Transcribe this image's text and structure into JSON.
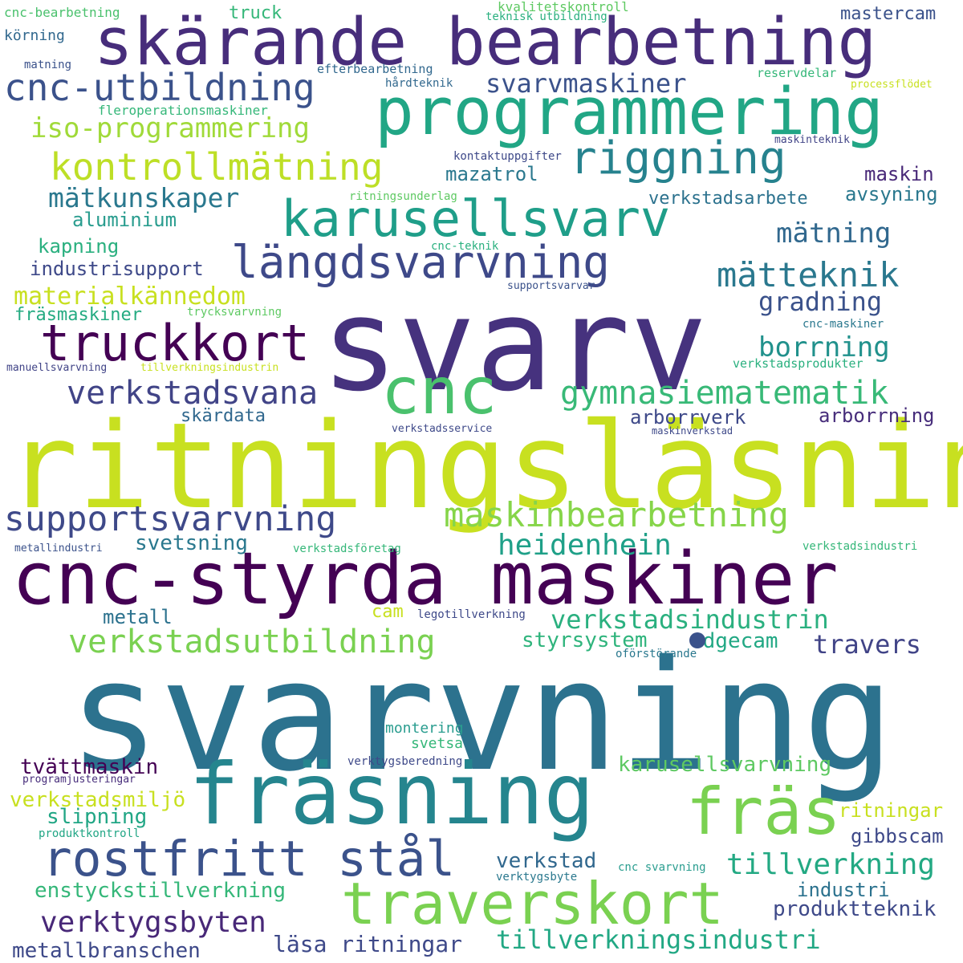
{
  "words": [
    {
      "text": "svarvning",
      "color": "#2c728e"
    },
    {
      "text": "ritningsläsning",
      "color": "#c8e020"
    },
    {
      "text": "svarv",
      "color": "#46327e"
    },
    {
      "text": "cnc-styrda maskiner",
      "color": "#440154"
    },
    {
      "text": "skärande bearbetning",
      "color": "#472d7b"
    },
    {
      "text": "programmering",
      "color": "#21a685"
    },
    {
      "text": "fräsning",
      "color": "#25858e"
    },
    {
      "text": "traverskort",
      "color": "#7ad151"
    },
    {
      "text": "cnc",
      "color": "#4ac16d"
    },
    {
      "text": "karusellsvarv",
      "color": "#1f9e89"
    },
    {
      "text": "längdsvarvning",
      "color": "#3e4989"
    },
    {
      "text": "truckkort",
      "color": "#440154"
    },
    {
      "text": "rostfritt stål",
      "color": "#3b528b"
    },
    {
      "text": "fräs",
      "color": "#7ad151"
    },
    {
      "text": "riggning",
      "color": "#26828e"
    },
    {
      "text": "cnc-utbildning",
      "color": "#3b528b"
    },
    {
      "text": "kontrollmätning",
      "color": "#bddf26"
    },
    {
      "text": "maskinbearbetning",
      "color": "#86d549"
    },
    {
      "text": "supportsvarvning",
      "color": "#3e4989"
    },
    {
      "text": "verkstadsvana",
      "color": "#414487"
    },
    {
      "text": "gymnasiematematik",
      "color": "#38b977"
    },
    {
      "text": "verkstadsutbildning",
      "color": "#7ad151"
    },
    {
      "text": "iso-programmering",
      "color": "#a0da39"
    },
    {
      "text": "mätteknik",
      "color": "#2a788e"
    },
    {
      "text": "verkstadsindustrin",
      "color": "#2ab07f"
    },
    {
      "text": "svarvmaskiner",
      "color": "#3b528b"
    },
    {
      "text": "tillverkning",
      "color": "#23a983"
    },
    {
      "text": "tillverkningsindustri",
      "color": "#22a884"
    },
    {
      "text": "verktygsbyten",
      "color": "#482878"
    },
    {
      "text": "mätkunskaper",
      "color": "#2a788e"
    },
    {
      "text": "materialkännedom",
      "color": "#c8e020"
    },
    {
      "text": "heidenhein",
      "color": "#1fa088"
    },
    {
      "text": "mätning",
      "color": "#31688e"
    },
    {
      "text": "gradning",
      "color": "#3b528b"
    },
    {
      "text": "borrning",
      "color": "#21918c"
    },
    {
      "text": "travers",
      "color": "#414487"
    },
    {
      "text": "enstyckstillverkning",
      "color": "#35b779"
    },
    {
      "text": "karusellsvarvning",
      "color": "#5ec962"
    },
    {
      "text": "läsa ritningar",
      "color": "#3e4989"
    },
    {
      "text": "metallbranschen",
      "color": "#3e4989"
    },
    {
      "text": "produktteknik",
      "color": "#3e4989"
    },
    {
      "text": "verkstadsmiljö",
      "color": "#c8e020"
    },
    {
      "text": "tvättmaskin",
      "color": "#440154"
    },
    {
      "text": "slipning",
      "color": "#21a685"
    },
    {
      "text": "styrsystem",
      "color": "#2fb47c"
    },
    {
      "text": "edgecam",
      "color": "#22a884"
    },
    {
      "text": "arborrverk",
      "color": "#3e4989"
    },
    {
      "text": "arborrning",
      "color": "#472d7b"
    },
    {
      "text": "skärdata",
      "color": "#31688e"
    },
    {
      "text": "svetsning",
      "color": "#2a788e"
    },
    {
      "text": "metall",
      "color": "#2c728e"
    },
    {
      "text": "verkstad",
      "color": "#31688e"
    },
    {
      "text": "gibbscam",
      "color": "#3e4989"
    },
    {
      "text": "ritningar",
      "color": "#c8e020"
    },
    {
      "text": "industri",
      "color": "#2c728e"
    },
    {
      "text": "mazatrol",
      "color": "#2a788e"
    },
    {
      "text": "verkstadsarbete",
      "color": "#2c728e"
    },
    {
      "text": "avsyning",
      "color": "#2a788e"
    },
    {
      "text": "maskin",
      "color": "#482878"
    },
    {
      "text": "aluminium",
      "color": "#2a9d8f"
    },
    {
      "text": "kapning",
      "color": "#2ab07f"
    },
    {
      "text": "industrisupport",
      "color": "#3e4989"
    },
    {
      "text": "fräsmaskiner",
      "color": "#25ab82"
    },
    {
      "text": "mastercam",
      "color": "#3b528b"
    },
    {
      "text": "truck",
      "color": "#35b779"
    },
    {
      "text": "körning",
      "color": "#31688e"
    },
    {
      "text": "cam",
      "color": "#c8e020"
    },
    {
      "text": "montering",
      "color": "#2a9d8f"
    },
    {
      "text": "svetsa",
      "color": "#35b779"
    },
    {
      "text": "cnc-bearbetning",
      "color": "#4ac16d"
    },
    {
      "text": "matning",
      "color": "#3b528b"
    },
    {
      "text": "efterbearbetning",
      "color": "#31688e"
    },
    {
      "text": "hårdteknik",
      "color": "#31688e"
    },
    {
      "text": "fleroperationsmaskiner",
      "color": "#35b779"
    },
    {
      "text": "kvalitetskontroll",
      "color": "#5ec962"
    },
    {
      "text": "teknisk utbildning",
      "color": "#2ab07f"
    },
    {
      "text": "reservdelar",
      "color": "#35b779"
    },
    {
      "text": "processflödet",
      "color": "#c8e020"
    },
    {
      "text": "kontaktuppgifter",
      "color": "#3e4989"
    },
    {
      "text": "maskinteknik",
      "color": "#414487"
    },
    {
      "text": "ritningsunderlag",
      "color": "#5ec962"
    },
    {
      "text": "cnc-teknik",
      "color": "#2ab07f"
    },
    {
      "text": "supportsvarvar",
      "color": "#3b528b"
    },
    {
      "text": "trycksvarvning",
      "color": "#5ec962"
    },
    {
      "text": "cnc-maskiner",
      "color": "#2a788e"
    },
    {
      "text": "verkstadsprodukter",
      "color": "#2ab07f"
    },
    {
      "text": "manuellsvarvning",
      "color": "#414487"
    },
    {
      "text": "tillverkningsindustrin",
      "color": "#c8e020"
    },
    {
      "text": "verkstadsservice",
      "color": "#3e4989"
    },
    {
      "text": "maskinverkstad",
      "color": "#3e4989"
    },
    {
      "text": "metallindustri",
      "color": "#3b528b"
    },
    {
      "text": "verkstadsföretag",
      "color": "#35b779"
    },
    {
      "text": "verkstadsindustri",
      "color": "#35b779"
    },
    {
      "text": "legotillverkning",
      "color": "#3e4989"
    },
    {
      "text": "oförstörande",
      "color": "#2a788e"
    },
    {
      "text": "verktygsberedning",
      "color": "#3e4989"
    },
    {
      "text": "programjusteringar",
      "color": "#472d7b"
    },
    {
      "text": "produktkontroll",
      "color": "#21a685"
    },
    {
      "text": "cnc svarvning",
      "color": "#2a9d8f"
    },
    {
      "text": "verktygsbyte",
      "color": "#2a788e"
    }
  ],
  "dot_color": "#3b528b"
}
